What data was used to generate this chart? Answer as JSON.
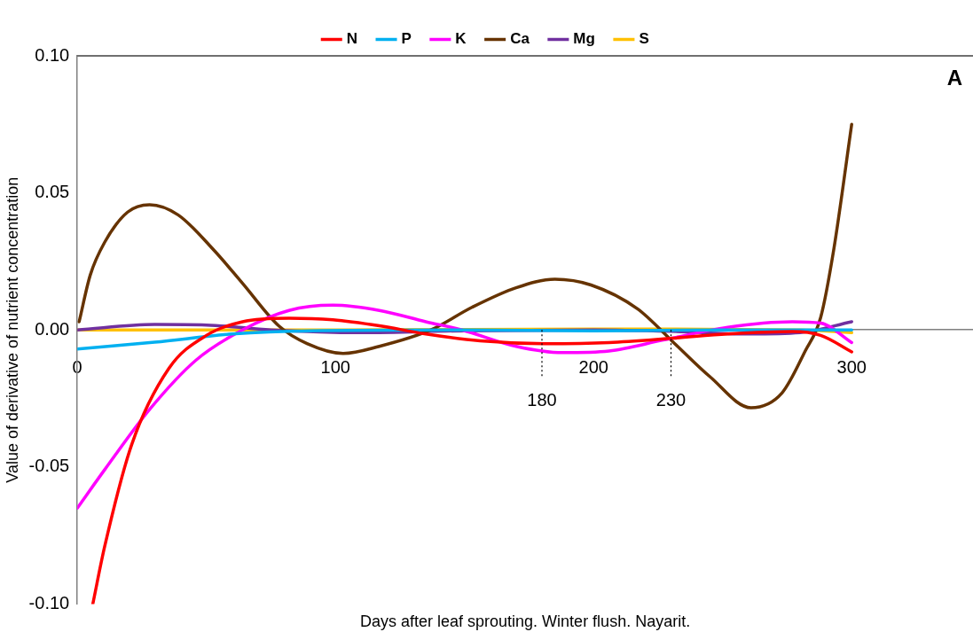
{
  "chart_data": {
    "type": "line",
    "xlabel": "Days after leaf sprouting. Winter flush. Nayarit.",
    "ylabel": "Value of derivative of nutrient concentration",
    "annotations": [
      "A"
    ],
    "xlim": [
      0,
      347
    ],
    "xticks": [
      0,
      100,
      200,
      300
    ],
    "ylim": [
      -0.1,
      0.1
    ],
    "yticks": [
      {
        "value": -0.1,
        "label": "-0.10"
      },
      {
        "value": -0.05,
        "label": "-0.05"
      },
      {
        "value": 0,
        "label": "0.00"
      },
      {
        "value": 0.05,
        "label": "0.05"
      },
      {
        "value": 0.1,
        "label": "0.10"
      }
    ],
    "grid": false,
    "legend": "top",
    "marker": "none",
    "line_style": "solid",
    "ref_lines": [
      {
        "axis": "x",
        "value": 180,
        "label": "180",
        "line_style": "dotted",
        "color": "#000000"
      },
      {
        "axis": "x",
        "value": 230,
        "label": "230",
        "line_style": "dotted",
        "color": "#000000"
      }
    ],
    "series": [
      {
        "name": "N",
        "color": "#ff0000",
        "x": [
          6,
          10.6,
          21,
          35.5,
          50,
          64,
          82,
          99,
          117,
          135,
          156,
          181,
          206,
          231,
          252,
          277,
          288,
          300
        ],
        "values": [
          -0.1,
          -0.079,
          -0.042,
          -0.014,
          -0.002,
          0.003,
          0.0043,
          0.0037,
          0.0015,
          -0.0015,
          -0.004,
          -0.005,
          -0.0046,
          -0.003,
          -0.0015,
          -0.0006,
          -0.002,
          -0.008
        ]
      },
      {
        "name": "P",
        "color": "#00b0f0",
        "x": [
          0,
          30,
          60,
          90,
          150,
          200,
          250,
          300
        ],
        "values": [
          -0.007,
          -0.0045,
          -0.0015,
          -0.0003,
          0,
          -0.0003,
          0,
          0
        ]
      },
      {
        "name": "K",
        "color": "#ff00ff",
        "x": [
          0,
          10.6,
          28,
          46,
          64,
          82,
          99,
          117,
          135,
          149,
          170,
          188,
          206,
          227,
          252,
          277,
          288,
          300
        ],
        "values": [
          -0.065,
          -0.051,
          -0.029,
          -0.011,
          0,
          0.0071,
          0.009,
          0.0071,
          0.003,
          0,
          -0.006,
          -0.0083,
          -0.0077,
          -0.0037,
          0.001,
          0.003,
          0.0025,
          -0.0046
        ]
      },
      {
        "name": "Ca",
        "color": "#663300",
        "x": [
          0.7,
          5,
          10.6,
          19.5,
          28,
          39,
          53,
          64,
          78,
          89,
          103,
          117,
          137,
          153,
          170,
          185,
          199,
          217,
          231,
          245,
          261,
          273,
          282,
          288,
          293,
          300
        ],
        "values": [
          0.003,
          0.02,
          0.032,
          0.043,
          0.0457,
          0.042,
          0.029,
          0.017,
          0.0015,
          -0.005,
          -0.0086,
          -0.006,
          0,
          0.0083,
          0.0154,
          0.0185,
          0.0164,
          0.0077,
          -0.0046,
          -0.017,
          -0.0284,
          -0.023,
          -0.0077,
          0.0046,
          0.029,
          0.075
        ]
      },
      {
        "name": "Mg",
        "color": "#7030a0",
        "x": [
          0,
          30,
          50,
          75,
          110,
          150,
          200,
          230,
          260,
          280,
          300
        ],
        "values": [
          0,
          0.002,
          0.0018,
          0,
          -0.001,
          -0.0003,
          0,
          -0.0005,
          -0.0015,
          -0.001,
          0.003
        ]
      },
      {
        "name": "S",
        "color": "#ffc000",
        "x": [
          0,
          100,
          200,
          280,
          300
        ],
        "values": [
          0,
          0,
          0.0003,
          0,
          -0.001
        ]
      }
    ]
  }
}
